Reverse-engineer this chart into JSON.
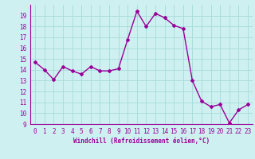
{
  "x": [
    0,
    1,
    2,
    3,
    4,
    5,
    6,
    7,
    8,
    9,
    10,
    11,
    12,
    13,
    14,
    15,
    16,
    17,
    18,
    19,
    20,
    21,
    22,
    23
  ],
  "y": [
    14.7,
    14.0,
    13.1,
    14.3,
    13.9,
    13.6,
    14.3,
    13.9,
    13.9,
    14.1,
    16.8,
    19.4,
    18.0,
    19.2,
    18.8,
    18.1,
    17.8,
    13.0,
    11.1,
    10.6,
    10.8,
    9.1,
    10.3,
    10.8
  ],
  "line_color": "#990099",
  "marker": "D",
  "marker_size": 2.0,
  "line_width": 1.0,
  "bg_color": "#cff0f0",
  "grid_color": "#aadddd",
  "xlabel": "Windchill (Refroidissement éolien,°C)",
  "xlabel_color": "#990099",
  "tick_color": "#990099",
  "ylim": [
    9,
    20
  ],
  "xlim": [
    -0.5,
    23.5
  ],
  "yticks": [
    9,
    10,
    11,
    12,
    13,
    14,
    15,
    16,
    17,
    18,
    19
  ],
  "xticks": [
    0,
    1,
    2,
    3,
    4,
    5,
    6,
    7,
    8,
    9,
    10,
    11,
    12,
    13,
    14,
    15,
    16,
    17,
    18,
    19,
    20,
    21,
    22,
    23
  ]
}
